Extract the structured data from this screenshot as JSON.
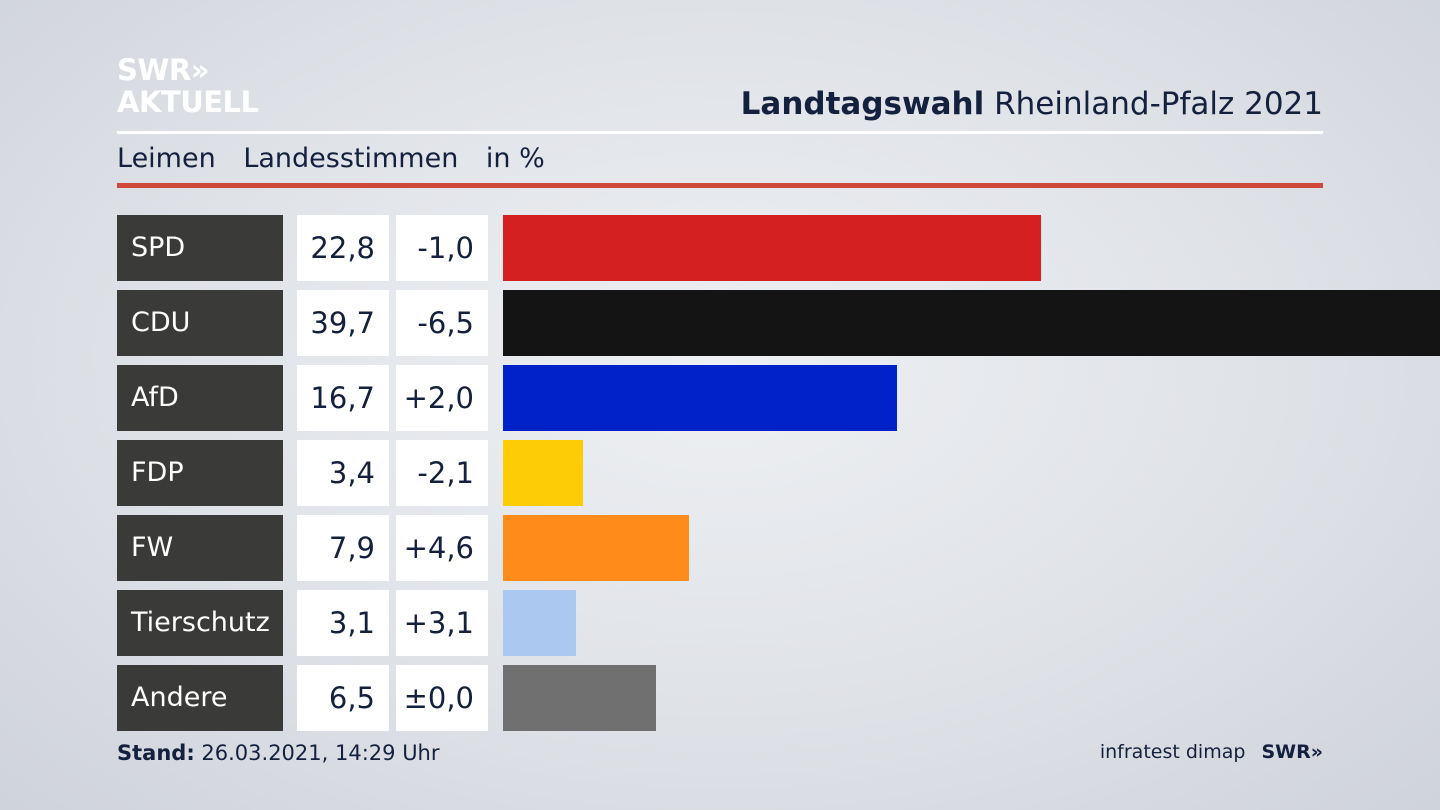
{
  "brand": {
    "line1": "SWR»",
    "line2": "AKTUELL"
  },
  "header": {
    "title_bold": "Landtagswahl",
    "title_rest": "Rheinland-Pfalz 2021"
  },
  "subtitle": {
    "place": "Leimen",
    "kind": "Landesstimmen",
    "unit": "in %"
  },
  "chart_data": {
    "type": "bar",
    "orientation": "horizontal",
    "title": "Landtagswahl Rheinland-Pfalz 2021",
    "subtitle": "Leimen Landesstimmen in %",
    "categories": [
      "SPD",
      "CDU",
      "AfD",
      "FDP",
      "FW",
      "Tierschutz",
      "Andere"
    ],
    "values": [
      22.8,
      39.7,
      16.7,
      3.4,
      7.9,
      3.1,
      6.5
    ],
    "value_labels": [
      "22,8",
      "39,7",
      "16,7",
      "3,4",
      "7,9",
      "3,1",
      "6,5"
    ],
    "changes": [
      "-1,0",
      "-6,5",
      "+2,0",
      "-2,1",
      "+4,6",
      "+3,1",
      "±0,0"
    ],
    "colors": [
      "#d42020",
      "#141414",
      "#0022c8",
      "#fecc06",
      "#ff8c1a",
      "#aac8f0",
      "#707070"
    ],
    "xlim": [
      0,
      39.7
    ]
  },
  "footer": {
    "stand_label": "Stand:",
    "stand_value": "26.03.2021, 14:29 Uhr",
    "source": "infratest dimap",
    "brand": "SWR»"
  }
}
